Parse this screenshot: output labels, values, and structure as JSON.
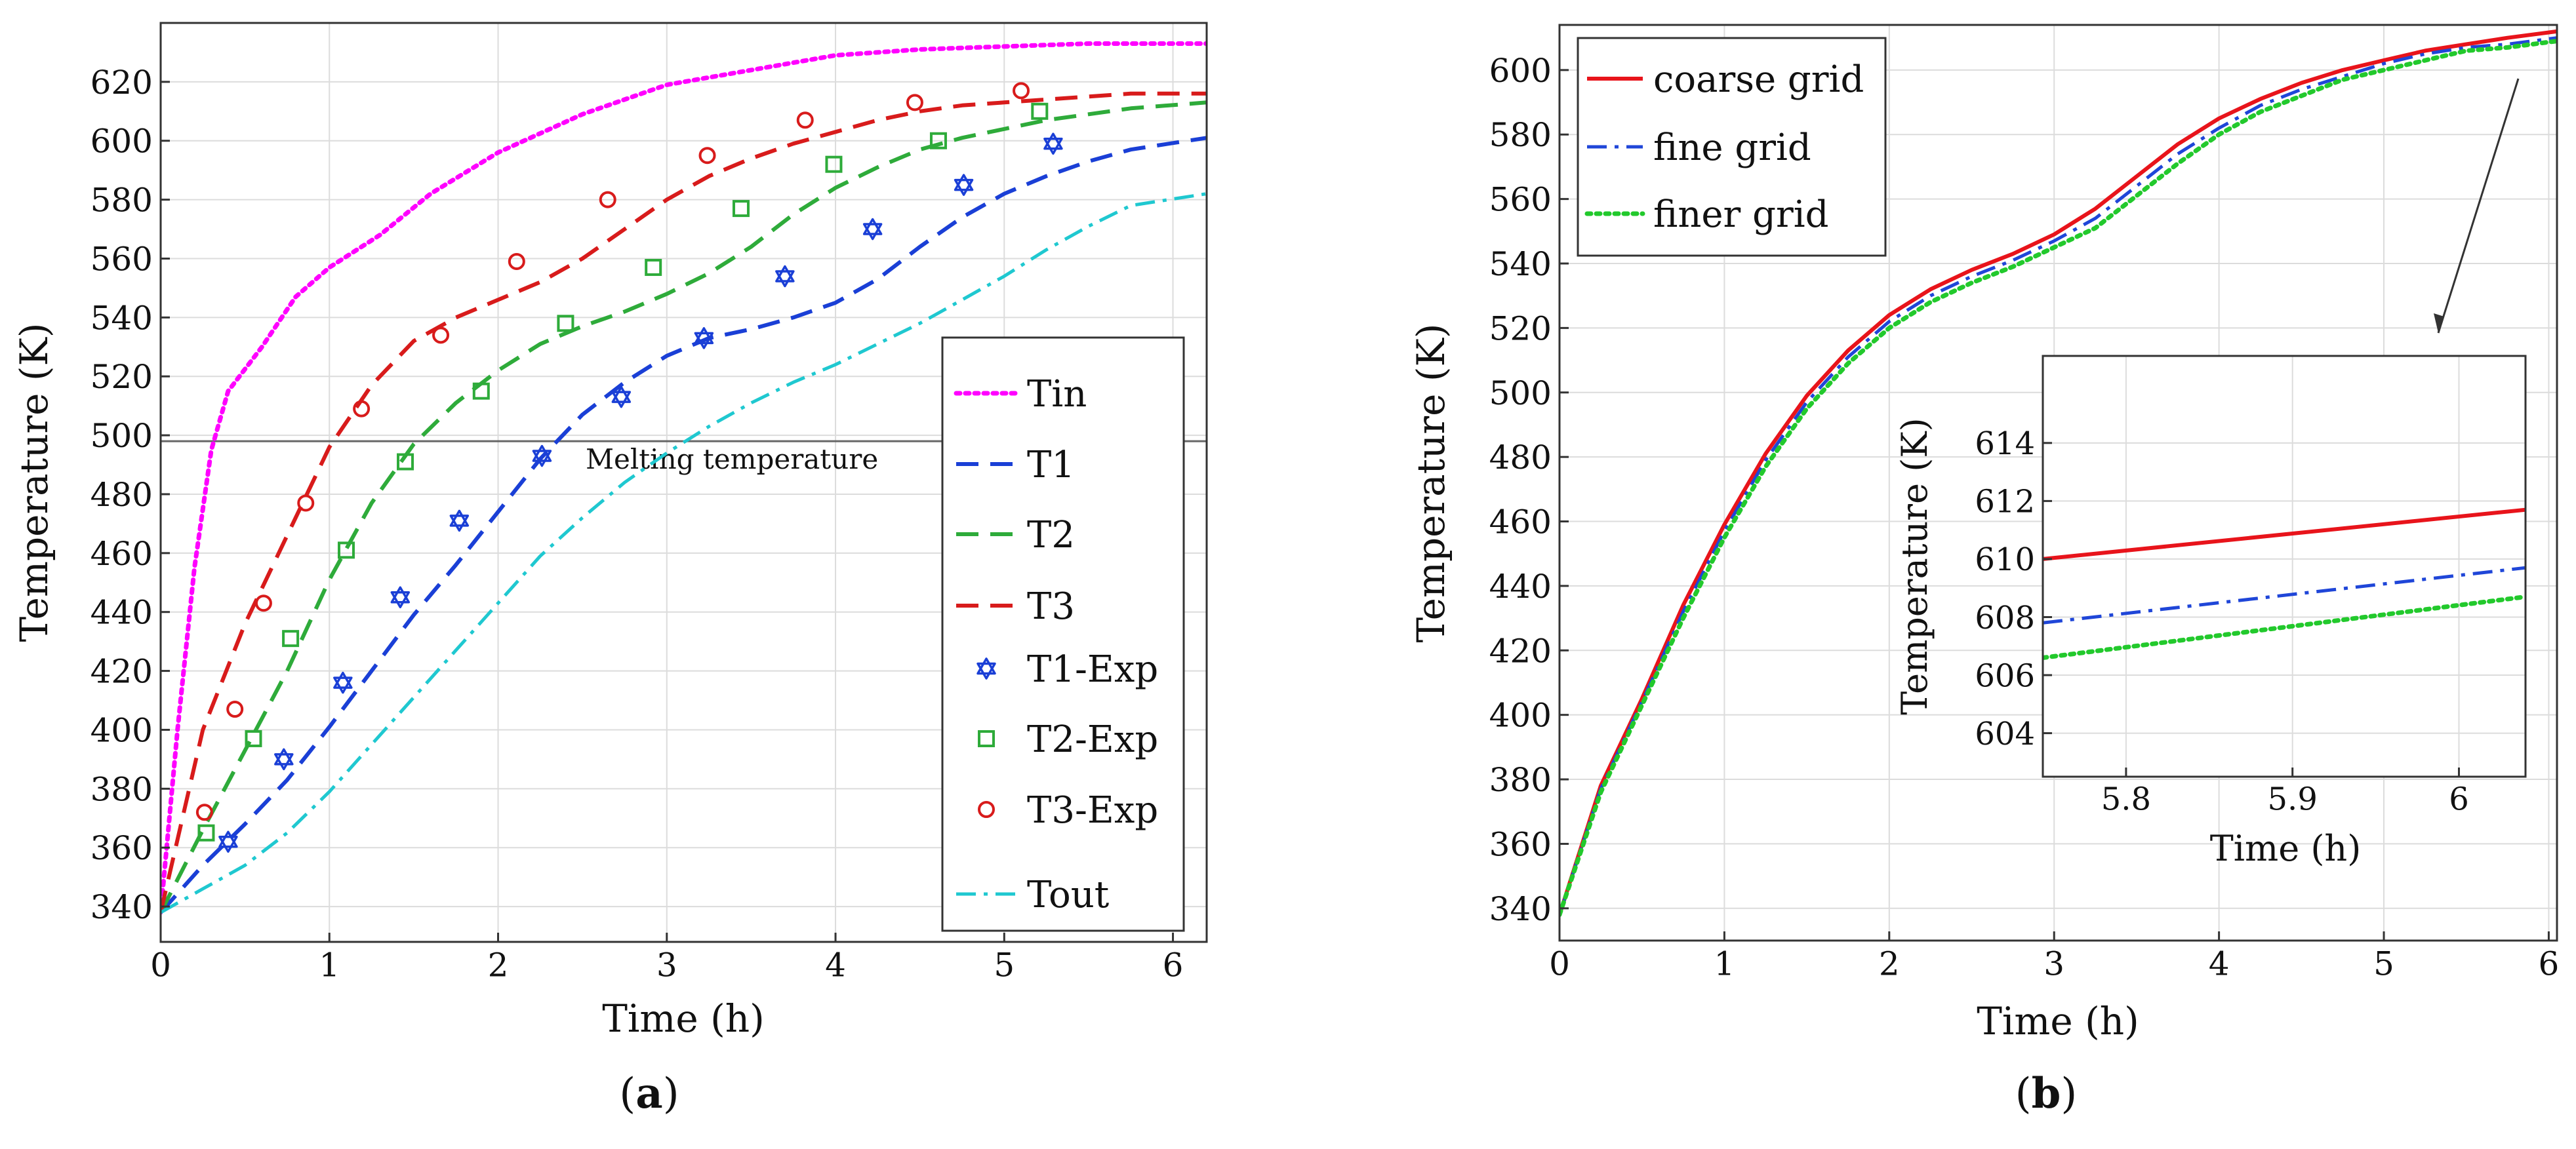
{
  "colors": {
    "tin": "#ff00ff",
    "t1": "#1a3fd6",
    "t2": "#2eab3a",
    "t3": "#d81b1b",
    "tout": "#1fc8d0",
    "coarse": "#e8141b",
    "fine": "#1f46d8",
    "finer": "#22c92c",
    "grid": "#dcdcdc",
    "melt": "#666666"
  },
  "chart_data": [
    {
      "id": "a",
      "panel_label": "a",
      "type": "line",
      "xlabel": "Time (h)",
      "ylabel": "Temperature (K)",
      "xlim": [
        0,
        6.2
      ],
      "ylim": [
        328,
        640
      ],
      "x_ticks": [
        "0",
        "1",
        "2",
        "3",
        "4",
        "5",
        "6"
      ],
      "y_ticks": [
        "340",
        "360",
        "380",
        "400",
        "420",
        "440",
        "460",
        "480",
        "500",
        "520",
        "540",
        "560",
        "580",
        "600",
        "620"
      ],
      "grid": true,
      "legend_position": "right",
      "annotation": {
        "text": "Melting temperature",
        "y": 498
      },
      "series": [
        {
          "name": "Tin",
          "style": "dotted",
          "color_key": "tin",
          "x": [
            0,
            0.1,
            0.2,
            0.3,
            0.4,
            0.6,
            0.8,
            1.0,
            1.3,
            1.6,
            2.0,
            2.5,
            3.0,
            3.5,
            4.0,
            4.5,
            5.0,
            5.5,
            6.2
          ],
          "y": [
            338,
            400,
            455,
            495,
            515,
            530,
            547,
            557,
            568,
            582,
            596,
            609,
            619,
            624,
            629,
            631,
            632,
            633,
            633
          ]
        },
        {
          "name": "T1",
          "style": "dashed",
          "color_key": "t1",
          "x": [
            0,
            0.25,
            0.5,
            0.75,
            1.0,
            1.25,
            1.5,
            1.75,
            2.0,
            2.25,
            2.5,
            2.75,
            3.0,
            3.25,
            3.5,
            3.75,
            4.0,
            4.25,
            4.5,
            4.75,
            5.0,
            5.25,
            5.5,
            5.75,
            6.2
          ],
          "y": [
            338,
            354,
            368,
            383,
            401,
            420,
            439,
            456,
            474,
            492,
            507,
            518,
            527,
            533,
            536,
            540,
            545,
            553,
            564,
            574,
            582,
            588,
            593,
            597,
            601
          ]
        },
        {
          "name": "T2",
          "style": "dashed",
          "color_key": "t2",
          "x": [
            0,
            0.25,
            0.5,
            0.75,
            1.0,
            1.25,
            1.5,
            1.75,
            2.0,
            2.25,
            2.5,
            2.75,
            3.0,
            3.25,
            3.5,
            3.75,
            4.0,
            4.25,
            4.5,
            4.75,
            5.0,
            5.25,
            5.5,
            5.75,
            6.2
          ],
          "y": [
            338,
            366,
            393,
            420,
            451,
            477,
            497,
            511,
            522,
            531,
            537,
            542,
            548,
            555,
            564,
            575,
            584,
            591,
            597,
            601,
            604,
            607,
            609,
            611,
            613
          ]
        },
        {
          "name": "T3",
          "style": "dashed",
          "color_key": "t3",
          "x": [
            0,
            0.25,
            0.5,
            0.75,
            1.0,
            1.25,
            1.5,
            1.75,
            2.0,
            2.25,
            2.5,
            2.75,
            3.0,
            3.25,
            3.5,
            3.75,
            4.0,
            4.25,
            4.5,
            4.75,
            5.0,
            5.25,
            5.5,
            5.75,
            6.2
          ],
          "y": [
            338,
            400,
            436,
            466,
            496,
            517,
            532,
            540,
            546,
            552,
            560,
            570,
            580,
            588,
            594,
            599,
            603,
            607,
            610,
            612,
            613,
            614,
            615,
            616,
            616
          ]
        },
        {
          "name": "T1-Exp",
          "style": "marker-star",
          "color_key": "t1",
          "x": [
            0.4,
            0.73,
            1.08,
            1.42,
            1.77,
            2.26,
            2.73,
            3.22,
            3.7,
            4.22,
            4.76,
            5.29
          ],
          "y": [
            362,
            390,
            416,
            445,
            471,
            493,
            513,
            533,
            554,
            570,
            585,
            599
          ]
        },
        {
          "name": "T2-Exp",
          "style": "marker-square",
          "color_key": "t2",
          "x": [
            0.27,
            0.55,
            0.77,
            1.1,
            1.45,
            1.9,
            2.4,
            2.92,
            3.44,
            3.99,
            4.61,
            5.21
          ],
          "y": [
            365,
            397,
            431,
            461,
            491,
            515,
            538,
            557,
            577,
            592,
            600,
            610
          ]
        },
        {
          "name": "T3-Exp",
          "style": "marker-circle",
          "color_key": "t3",
          "x": [
            0.26,
            0.44,
            0.61,
            0.86,
            1.19,
            1.66,
            2.11,
            2.65,
            3.24,
            3.82,
            4.47,
            5.1
          ],
          "y": [
            372,
            407,
            443,
            477,
            509,
            534,
            559,
            580,
            595,
            607,
            613,
            617
          ]
        },
        {
          "name": "Tout",
          "style": "dashdot",
          "color_key": "tout",
          "x": [
            0,
            0.25,
            0.5,
            0.75,
            1.0,
            1.25,
            1.5,
            1.75,
            2.0,
            2.25,
            2.5,
            2.75,
            3.0,
            3.25,
            3.5,
            3.75,
            4.0,
            4.25,
            4.5,
            4.75,
            5.0,
            5.25,
            5.5,
            5.75,
            6.2
          ],
          "y": [
            338,
            346,
            354,
            365,
            379,
            395,
            411,
            427,
            443,
            459,
            472,
            484,
            494,
            503,
            511,
            518,
            524,
            531,
            538,
            546,
            554,
            563,
            571,
            578,
            582
          ]
        }
      ]
    },
    {
      "id": "b",
      "panel_label": "b",
      "type": "line",
      "xlabel": "Time (h)",
      "ylabel": "Temperature (K)",
      "xlim": [
        0,
        6.05
      ],
      "ylim": [
        330,
        614
      ],
      "x_ticks": [
        "0",
        "1",
        "2",
        "3",
        "4",
        "5",
        "6"
      ],
      "y_ticks": [
        "340",
        "360",
        "380",
        "400",
        "420",
        "440",
        "460",
        "480",
        "500",
        "520",
        "540",
        "560",
        "580",
        "600"
      ],
      "grid": true,
      "legend_position": "top-left",
      "series": [
        {
          "name": "coarse grid",
          "style": "solid",
          "color_key": "coarse",
          "x": [
            0,
            0.25,
            0.5,
            0.75,
            1.0,
            1.25,
            1.5,
            1.75,
            2.0,
            2.25,
            2.5,
            2.75,
            3.0,
            3.25,
            3.5,
            3.75,
            4.0,
            4.25,
            4.5,
            4.75,
            5.0,
            5.25,
            5.5,
            5.75,
            6.05
          ],
          "y": [
            338,
            378,
            405,
            434,
            459,
            481,
            499,
            513,
            524,
            532,
            538,
            543,
            549,
            557,
            567,
            577,
            585,
            591,
            596,
            600,
            603,
            606,
            608,
            610,
            612
          ]
        },
        {
          "name": "fine grid",
          "style": "dashdot",
          "color_key": "fine",
          "x": [
            0,
            0.25,
            0.5,
            0.75,
            1.0,
            1.25,
            1.5,
            1.75,
            2.0,
            2.25,
            2.5,
            2.75,
            3.0,
            3.25,
            3.5,
            3.75,
            4.0,
            4.25,
            4.5,
            4.75,
            5.0,
            5.25,
            5.5,
            5.75,
            6.05
          ],
          "y": [
            338,
            377,
            404,
            432,
            457,
            479,
            497,
            511,
            522,
            530,
            536,
            541,
            547,
            554,
            564,
            574,
            582,
            589,
            594,
            598,
            602,
            605,
            607,
            608,
            610
          ]
        },
        {
          "name": "finer grid",
          "style": "dotted",
          "color_key": "finer",
          "x": [
            0,
            0.25,
            0.5,
            0.75,
            1.0,
            1.25,
            1.5,
            1.75,
            2.0,
            2.25,
            2.5,
            2.75,
            3.0,
            3.25,
            3.5,
            3.75,
            4.0,
            4.25,
            4.5,
            4.75,
            5.0,
            5.25,
            5.5,
            5.75,
            6.05
          ],
          "y": [
            338,
            376,
            403,
            430,
            455,
            477,
            495,
            509,
            520,
            528,
            534,
            539,
            545,
            551,
            561,
            571,
            580,
            587,
            592,
            597,
            600,
            603,
            606,
            607,
            609
          ]
        }
      ]
    },
    {
      "id": "b_inset",
      "type": "line",
      "xlabel": "Time (h)",
      "ylabel": "Temperature (K)",
      "xlim": [
        5.75,
        6.04
      ],
      "ylim": [
        602.5,
        617
      ],
      "x_ticks": [
        "5.8",
        "5.9",
        "6"
      ],
      "y_ticks": [
        "604",
        "606",
        "608",
        "610",
        "612",
        "614"
      ],
      "grid": true,
      "series": [
        {
          "name": "coarse grid",
          "style": "solid",
          "color_key": "coarse",
          "x": [
            5.75,
            6.04
          ],
          "y": [
            610.0,
            611.7
          ]
        },
        {
          "name": "fine grid",
          "style": "dashdot",
          "color_key": "fine",
          "x": [
            5.75,
            6.04
          ],
          "y": [
            607.8,
            609.7
          ]
        },
        {
          "name": "finer grid",
          "style": "dotted",
          "color_key": "finer",
          "x": [
            5.75,
            6.04
          ],
          "y": [
            606.6,
            608.7
          ]
        }
      ]
    }
  ]
}
